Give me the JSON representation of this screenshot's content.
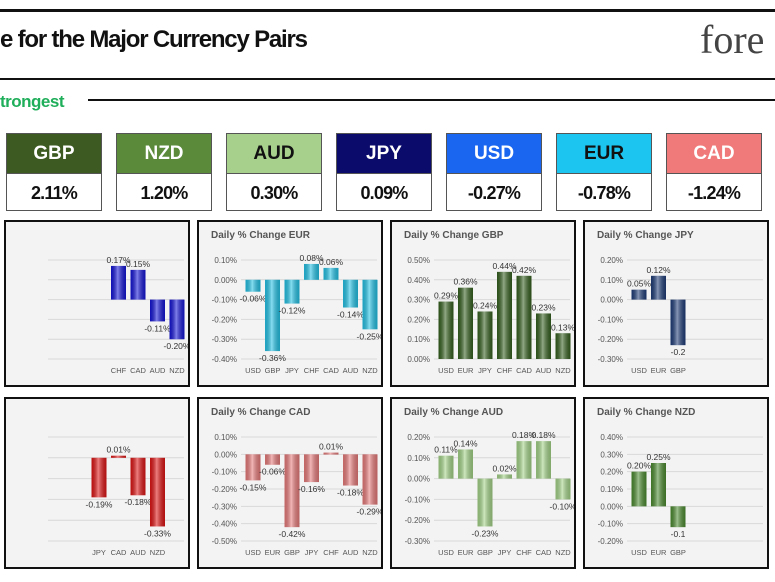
{
  "header": {
    "title": "e for the Major Currency Pairs",
    "logo_text": "fore",
    "strongest_label": "trongest"
  },
  "ranking": [
    {
      "currency": "GBP",
      "change": "2.11%",
      "color": "#3d5a22",
      "text_color": "#ffffff"
    },
    {
      "currency": "NZD",
      "change": "1.20%",
      "color": "#5a8a3a",
      "text_color": "#ffffff"
    },
    {
      "currency": "AUD",
      "change": "0.30%",
      "color": "#a8d08d",
      "text_color": "#111111"
    },
    {
      "currency": "JPY",
      "change": "0.09%",
      "color": "#0b0b6b",
      "text_color": "#ffffff"
    },
    {
      "currency": "USD",
      "change": "-0.27%",
      "color": "#1a66f0",
      "text_color": "#ffffff"
    },
    {
      "currency": "EUR",
      "change": "-0.78%",
      "color": "#1cc4f0",
      "text_color": "#111111"
    },
    {
      "currency": "CAD",
      "change": "-1.24%",
      "color": "#f07a7a",
      "text_color": "#ffffff"
    }
  ],
  "chart_data": [
    {
      "type": "bar",
      "title": "",
      "color": "#1414d8",
      "ylim": [
        -0.3,
        0.2
      ],
      "categories": [
        "",
        "",
        "",
        "CHF",
        "CAD",
        "AUD",
        "NZD"
      ],
      "values": [
        null,
        null,
        null,
        0.17,
        0.15,
        -0.11,
        -0.2
      ],
      "labels": [
        "",
        "",
        "",
        "0.17%",
        "0.15%",
        "-0.11%",
        "-0.20%"
      ],
      "yticks": [
        "",
        "",
        "",
        "",
        "",
        ""
      ]
    },
    {
      "type": "bar",
      "title": "Daily % Change EUR",
      "color": "#22c2e6",
      "ylim": [
        -0.4,
        0.1
      ],
      "categories": [
        "USD",
        "GBP",
        "JPY",
        "CHF",
        "CAD",
        "AUD",
        "NZD"
      ],
      "values": [
        -0.06,
        -0.36,
        -0.12,
        0.08,
        0.06,
        -0.14,
        -0.25
      ],
      "labels": [
        "-0.06%",
        "-0.36%",
        "-0.12%",
        "0.08%",
        "0.06%",
        "-0.14%",
        "-0.25%"
      ],
      "yticks": [
        "0.10%",
        "0.00%",
        "-0.10%",
        "-0.20%",
        "-0.30%",
        "-0.40%"
      ]
    },
    {
      "type": "bar",
      "title": "Daily % Change GBP",
      "color": "#35601f",
      "ylim": [
        0,
        0.5
      ],
      "categories": [
        "USD",
        "EUR",
        "JPY",
        "CHF",
        "CAD",
        "AUD",
        "NZD"
      ],
      "values": [
        0.29,
        0.36,
        0.24,
        0.44,
        0.42,
        0.23,
        0.13
      ],
      "labels": [
        "0.29%",
        "0.36%",
        "0.24%",
        "0.44%",
        "0.42%",
        "0.23%",
        "0.13%"
      ],
      "yticks": [
        "0.50%",
        "0.40%",
        "0.30%",
        "0.20%",
        "0.10%",
        "0.00%"
      ]
    },
    {
      "type": "bar",
      "title": "Daily % Change JPY",
      "color": "#1f3d78",
      "ylim": [
        -0.3,
        0.2
      ],
      "categories": [
        "USD",
        "EUR",
        "GBP",
        "",
        "",
        "",
        ""
      ],
      "values": [
        0.05,
        0.12,
        -0.23,
        null,
        null,
        null,
        null
      ],
      "labels": [
        "0.05%",
        "0.12%",
        "-0.2",
        "",
        "",
        "",
        ""
      ],
      "yticks": [
        "0.20%",
        "0.10%",
        "0.00%",
        "-0.10%",
        "-0.20%",
        "-0.30%"
      ]
    },
    {
      "type": "bar",
      "title": "",
      "color": "#e01414",
      "ylim": [
        -0.4,
        0.1
      ],
      "categories": [
        "",
        "",
        "JPY",
        "CAD",
        "AUD",
        "NZD",
        ""
      ],
      "values": [
        null,
        null,
        -0.19,
        0.01,
        -0.18,
        -0.33,
        null
      ],
      "labels": [
        "",
        "",
        "-0.19%",
        "0.01%",
        "-0.18%",
        "-0.33%",
        ""
      ],
      "yticks": [
        "",
        "",
        "",
        "",
        "",
        ""
      ]
    },
    {
      "type": "bar",
      "title": "Daily % Change CAD",
      "color": "#e87a7a",
      "ylim": [
        -0.5,
        0.1
      ],
      "categories": [
        "USD",
        "EUR",
        "GBP",
        "JPY",
        "CHF",
        "AUD",
        "NZD"
      ],
      "values": [
        -0.15,
        -0.06,
        -0.42,
        -0.16,
        0.01,
        -0.18,
        -0.29
      ],
      "labels": [
        "-0.15%",
        "-0.06%",
        "-0.42%",
        "-0.16%",
        "0.01%",
        "-0.18%",
        "-0.29%"
      ],
      "yticks": [
        "0.10%",
        "0.00%",
        "-0.10%",
        "-0.20%",
        "-0.30%",
        "-0.40%",
        "-0.50%"
      ]
    },
    {
      "type": "bar",
      "title": "Daily % Change AUD",
      "color": "#a4d488",
      "ylim": [
        -0.3,
        0.2
      ],
      "categories": [
        "USD",
        "EUR",
        "GBP",
        "JPY",
        "CHF",
        "CAD",
        "NZD"
      ],
      "values": [
        0.11,
        0.14,
        -0.23,
        0.02,
        0.18,
        0.18,
        -0.1
      ],
      "labels": [
        "0.11%",
        "0.14%",
        "-0.23%",
        "0.02%",
        "0.18%",
        "0.18%",
        "-0.10%"
      ],
      "yticks": [
        "0.20%",
        "0.10%",
        "0.00%",
        "-0.10%",
        "-0.20%",
        "-0.30%"
      ]
    },
    {
      "type": "bar",
      "title": "Daily % Change NZD",
      "color": "#4c8c30",
      "ylim": [
        -0.2,
        0.4
      ],
      "categories": [
        "USD",
        "EUR",
        "GBP",
        "",
        "",
        "",
        ""
      ],
      "values": [
        0.2,
        0.25,
        -0.12,
        null,
        null,
        null,
        null
      ],
      "labels": [
        "0.20%",
        "0.25%",
        "-0.1",
        "",
        "",
        "",
        ""
      ],
      "yticks": [
        "0.40%",
        "0.30%",
        "0.20%",
        "0.10%",
        "0.00%",
        "-0.10%",
        "-0.20%"
      ]
    }
  ]
}
